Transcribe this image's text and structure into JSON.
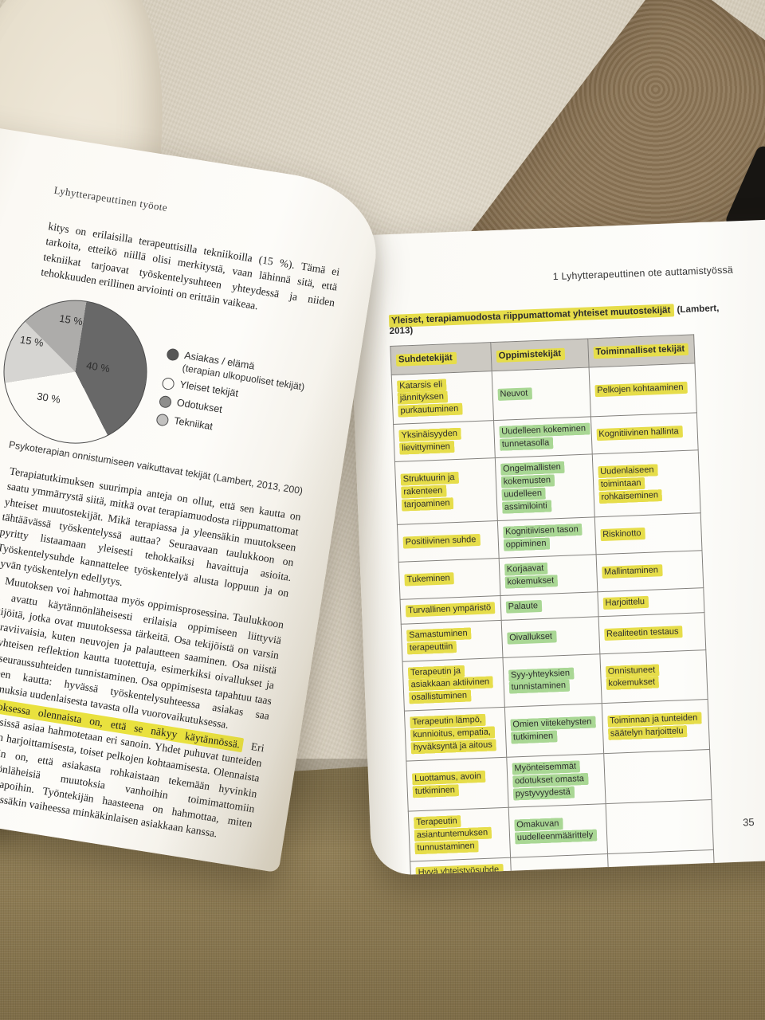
{
  "colors": {
    "highlight_yellow": "#e6dd4a",
    "highlight_yellow_strong": "#e9e13e",
    "highlight_green": "#a9d794",
    "table_header_bg": "#ccc9c2",
    "couch_back": "#d8d0bf",
    "couch_seat": "#8f7d55",
    "floor": "#8d7657"
  },
  "left_page": {
    "running_head": "Lyhytterapeuttinen työote",
    "paragraphs": {
      "p1": "kitys on erilaisilla terapeuttisilla tekniikoilla (15 %). Tämä ei tarkoita, etteikö niillä olisi merkitystä, vaan lähinnä sitä, että tekniikat tarjoavat työskentelysuhteen yhteydessä ja niiden tehokkuuden erillinen arviointi on erittäin vaikeaa.",
      "p2": "Terapiatutkimuksen suurimpia anteja on ollut, että sen kautta on saatu ymmärrystä siitä, mitkä ovat terapiamuodosta riippumattomat yhteiset muutostekijät. Mikä terapiassa ja yleensäkin muutokseen tähtäävässä työskentelyssä auttaa? Seuraavaan taulukkoon on pyritty listaamaan yleisesti tehokkaiksi havaittuja asioita. Työskentelysuhde kannattelee työskentelyä alusta loppuun ja on hyvän työskentelyn edellytys.",
      "p3": "Muutoksen voi hahmottaa myös oppimisprosessina. Taulukkoon on avattu käytännönläheisesti erilaisia oppimiseen liittyviä tekijöitä, jotka ovat muutoksessa tärkeitä. Osa tekijöistä on varsin suoraviivaisia, kuten neuvojen ja palautteen saaminen. Osa niistä on yhteisen reflektion kautta tuotettuja, esimerkiksi oivallukset ja syy-seuraussuhteiden tunnistaminen. Osa oppimisesta tapahtuu taas suhteen kautta: hyvässä työskentelysuhteessa asiakas saa kokemuksia uudenlaisesta tavasta olla vuorovaikutuksessa."
    },
    "highlight": {
      "sentence": "Muutoksessa olennaista on, että se näkyy käytännössä.",
      "after": " Eri yhteyksissä asiaa hahmotetaan eri sanoin. Yhdet puhuvat tunteiden säätelyn harjoittamisesta, toiset pelkojen kohtaamisesta. Olennaista kuitenkin on, että asiakasta rohkaistaan tekemään hyvinkin käytännönläheisiä muutoksia vanhoihin toimimattomiin toimintatapoihin. Työntekijän haasteena on hahmottaa, miten toimia missäkin vaiheessa minkäkinlaisen asiakkaan kanssa."
    },
    "figure_caption": "Psykoterapian onnistumiseen vaikuttavat tekijät (Lambert, 2013, 200)"
  },
  "chart_data": {
    "type": "pie",
    "title": "Psykoterapian onnistumiseen vaikuttavat tekijät (Lambert, 2013, 200)",
    "slices": [
      {
        "label": "Asiakas / elämä (terapian ulkopuoliset tekijät)",
        "value": 40,
        "color": "#686868"
      },
      {
        "label": "Yleiset tekijät",
        "value": 30,
        "color": "#fcfbf7"
      },
      {
        "label": "Tekniikat",
        "value": 15,
        "color": "#d6d5d2"
      },
      {
        "label": "Odotukset",
        "value": 15,
        "color": "#adacaa"
      }
    ],
    "slice_labels": [
      "40 %",
      "30 %",
      "15 %",
      "15 %"
    ],
    "legend_position": "right",
    "legend": [
      {
        "label": "Asiakas / elämä",
        "sub": "(terapian ulkopuoliset tekijät)",
        "color": "#565656"
      },
      {
        "label": "Yleiset tekijät",
        "sub": "",
        "color": "#fcfbf7"
      },
      {
        "label": "Odotukset",
        "sub": "",
        "color": "#8e8e8c"
      },
      {
        "label": "Tekniikat",
        "sub": "",
        "color": "#c2c1bf"
      }
    ]
  },
  "right_page": {
    "running_head": "1 Lyhytterapeuttinen ote auttamistyössä",
    "page_number": "35",
    "table": {
      "title": "Yleiset, terapiamuodosta riippumattomat yhteiset muutostekijät",
      "citation": " (Lambert, 2013)",
      "headers": [
        "Suhdetekijät",
        "Oppimistekijät",
        "Toiminnalliset tekijät"
      ],
      "rows": [
        [
          "Katarsis eli jännityksen purkautuminen",
          "Neuvot",
          "Pelkojen kohtaaminen"
        ],
        [
          "Yksinäisyyden lievittyminen",
          "Uudelleen kokeminen tunnetasolla",
          "Kognitiivinen hallinta"
        ],
        [
          "Struktuurin ja rakenteen tarjoaminen",
          "Ongelmallisten kokemusten uudelleen assimilointi",
          "Uudenlaiseen toimintaan rohkaiseminen"
        ],
        [
          "Positiivinen suhde",
          "Kognitiivisen tason oppiminen",
          "Riskinotto"
        ],
        [
          "Tukeminen",
          "Korjaavat kokemukset",
          "Mallintaminen"
        ],
        [
          "Turvallinen ympäristö",
          "Palaute",
          "Harjoittelu"
        ],
        [
          "Samastuminen terapeuttiin",
          "Oivallukset",
          "Realiteetin testaus"
        ],
        [
          "Terapeutin ja asiakkaan aktiivinen osallistuminen",
          "Syy-yhteyksien tunnistaminen",
          "Onnistuneet kokemukset"
        ],
        [
          "Terapeutin lämpö, kunnioitus, empatia, hyväksyntä ja aitous",
          "Omien viitekehysten tutkiminen",
          "Toiminnan ja tunteiden säätelyn harjoittelu"
        ],
        [
          "Luottamus, avoin tutkiminen",
          "Myönteisemmät odotukset omasta pystyvyydestä",
          ""
        ],
        [
          "Terapeutin asiantuntemuksen tunnustaminen",
          "Omakuvan uudelleenmäärittely",
          ""
        ],
        [
          "Hyvä yhteistyösuhde",
          "",
          ""
        ]
      ]
    }
  }
}
